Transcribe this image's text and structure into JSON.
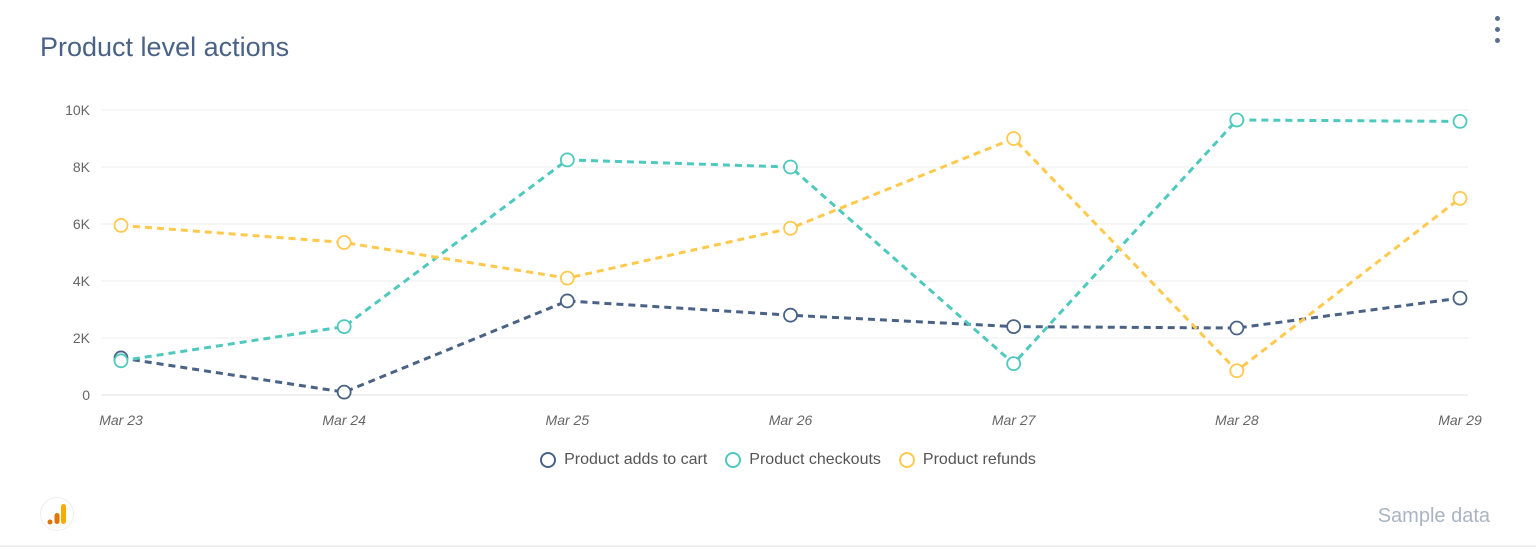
{
  "header": {
    "title": "Product level actions",
    "menu_icon": "more-vert-icon"
  },
  "footer": {
    "sample_label": "Sample data",
    "logo_icon": "analytics-logo-icon"
  },
  "chart_data": {
    "type": "line",
    "title": "Product level actions",
    "categories": [
      "Mar 23",
      "Mar 24",
      "Mar 25",
      "Mar 26",
      "Mar 27",
      "Mar 28",
      "Mar 29"
    ],
    "ylim": [
      0,
      10000
    ],
    "yticks": [
      0,
      2000,
      4000,
      6000,
      8000,
      10000
    ],
    "ytick_labels": [
      "0",
      "2K",
      "4K",
      "6K",
      "8K",
      "10K"
    ],
    "grid": true,
    "legend": "bottom",
    "line_style": "dashed",
    "series": [
      {
        "name": "Product adds to cart",
        "color": "#4a6285",
        "values": [
          1300,
          100,
          3300,
          2800,
          2400,
          2350,
          3400
        ]
      },
      {
        "name": "Product checkouts",
        "color": "#4fc9bd",
        "values": [
          1200,
          2400,
          8250,
          8000,
          1100,
          9650,
          9600
        ]
      },
      {
        "name": "Product refunds",
        "color": "#ffc94d",
        "values": [
          5950,
          5350,
          4100,
          5850,
          9000,
          850,
          6900
        ]
      }
    ]
  }
}
